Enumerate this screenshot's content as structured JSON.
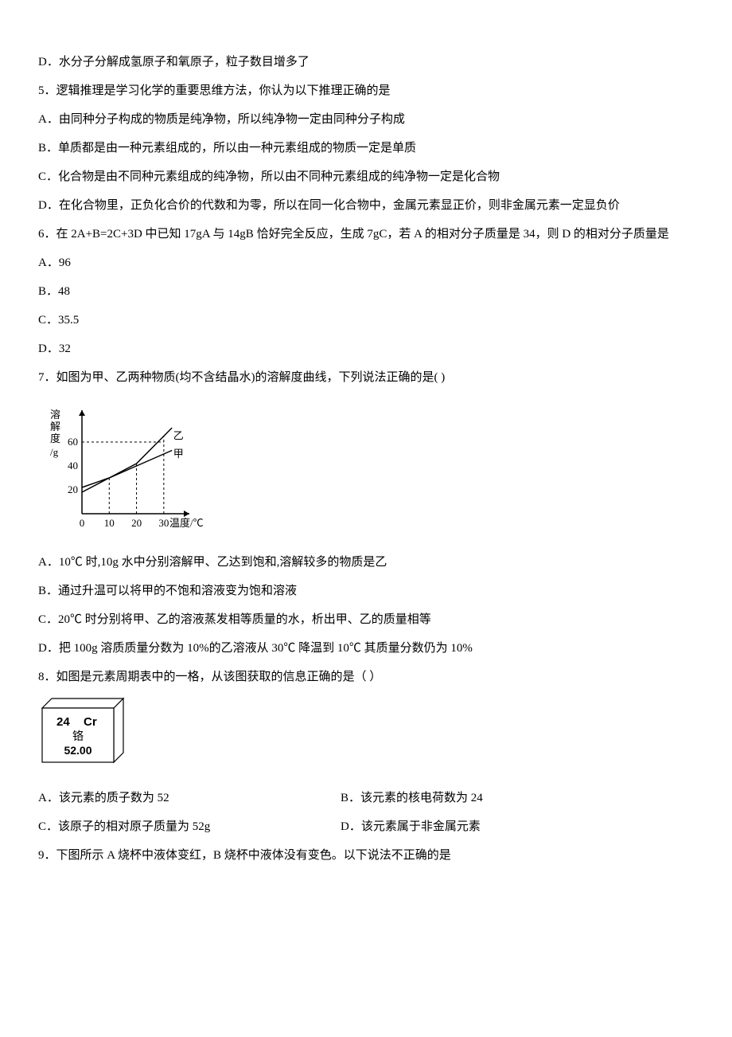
{
  "q4": {
    "optD": "D．水分子分解成氢原子和氧原子，粒子数目增多了"
  },
  "q5": {
    "stem": "5．逻辑推理是学习化学的重要思维方法，你认为以下推理正确的是",
    "optA": "A．由同种分子构成的物质是纯净物，所以纯净物一定由同种分子构成",
    "optB": "B．单质都是由一种元素组成的，所以由一种元素组成的物质一定是单质",
    "optC": "C．化合物是由不同种元素组成的纯净物，所以由不同种元素组成的纯净物一定是化合物",
    "optD": "D．在化合物里，正负化合价的代数和为零，所以在同一化合物中，金属元素显正价，则非金属元素一定显负价"
  },
  "q6": {
    "stem": "6．在 2A+B=2C+3D 中已知 17gA 与 14gB 恰好完全反应，生成 7gC，若 A 的相对分子质量是 34，则 D 的相对分子质量是",
    "optA": "A．96",
    "optB": "B．48",
    "optC": "C．35.5",
    "optD": "D．32"
  },
  "q7": {
    "stem": "7．如图为甲、乙两种物质(均不含结晶水)的溶解度曲线，下列说法正确的是(    )",
    "chart": {
      "type": "line",
      "y_label": "溶解度/g",
      "x_label": "温度/℃",
      "x_ticks": [
        0,
        10,
        20,
        30
      ],
      "y_ticks": [
        20,
        40,
        60
      ],
      "xlim": [
        0,
        35
      ],
      "ylim": [
        0,
        80
      ],
      "series": [
        {
          "name": "乙",
          "points": [
            [
              0,
              18
            ],
            [
              10,
              30
            ],
            [
              20,
              42
            ],
            [
              30,
              65
            ]
          ],
          "color": "#000000",
          "width": 1.5
        },
        {
          "name": "甲",
          "points": [
            [
              0,
              22
            ],
            [
              10,
              30
            ],
            [
              20,
              40
            ],
            [
              30,
              50
            ]
          ],
          "color": "#000000",
          "width": 1.5
        }
      ],
      "label_positions": {
        "乙": [
          32,
          65
        ],
        "甲": [
          32,
          50
        ]
      },
      "dash_lines": [
        {
          "from": [
            10,
            0
          ],
          "to": [
            10,
            30
          ]
        },
        {
          "from": [
            20,
            0
          ],
          "to": [
            20,
            42
          ]
        },
        {
          "from": [
            30,
            0
          ],
          "to": [
            30,
            65
          ]
        },
        {
          "from": [
            0,
            60
          ],
          "to": [
            30,
            60
          ]
        }
      ],
      "axis_color": "#000000",
      "font_size": 13
    },
    "optA": "A．10℃ 时,10g 水中分别溶解甲、乙达到饱和,溶解较多的物质是乙",
    "optB": "B．通过升温可以将甲的不饱和溶液变为饱和溶液",
    "optC": "C．20℃ 时分别将甲、乙的溶液蒸发相等质量的水，析出甲、乙的质量相等",
    "optD": "D．把 100g 溶质质量分数为 10%的乙溶液从 30℃ 降温到 10℃ 其质量分数仍为 10%"
  },
  "q8": {
    "stem": "8．如图是元素周期表中的一格，从该图获取的信息正确的是（      ）",
    "cell": {
      "number": "24",
      "symbol": "Cr",
      "name": "铬",
      "mass": "52.00",
      "border_color": "#000000",
      "bg_color": "#ffffff",
      "font_family": "Arial, sans-serif"
    },
    "optA": "A．该元素的质子数为 52",
    "optB": "B．该元素的核电荷数为 24",
    "optC": "C．该原子的相对原子质量为 52g",
    "optD": "D．该元素属于非金属元素"
  },
  "q9": {
    "stem": "9．下图所示 A 烧杯中液体变红，B 烧杯中液体没有变色。以下说法不正确的是"
  }
}
